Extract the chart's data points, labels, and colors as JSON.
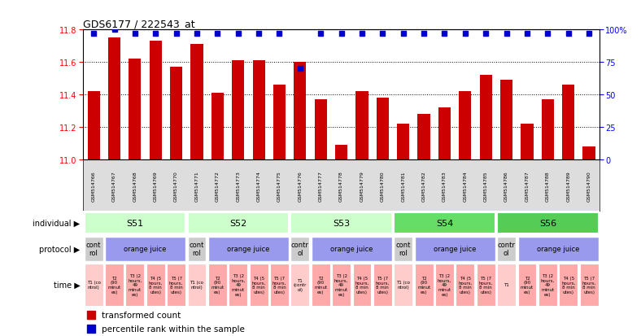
{
  "title": "GDS6177 / 222543_at",
  "samples": [
    "GSM514766",
    "GSM514767",
    "GSM514768",
    "GSM514769",
    "GSM514770",
    "GSM514771",
    "GSM514772",
    "GSM514773",
    "GSM514774",
    "GSM514775",
    "GSM514776",
    "GSM514777",
    "GSM514778",
    "GSM514779",
    "GSM514780",
    "GSM514781",
    "GSM514782",
    "GSM514783",
    "GSM514784",
    "GSM514785",
    "GSM514786",
    "GSM514787",
    "GSM514788",
    "GSM514789",
    "GSM514790"
  ],
  "bar_values": [
    11.42,
    11.75,
    11.62,
    11.73,
    11.57,
    11.71,
    11.41,
    11.61,
    11.61,
    11.46,
    11.6,
    11.37,
    11.09,
    11.42,
    11.38,
    11.22,
    11.28,
    11.32,
    11.42,
    11.52,
    11.49,
    11.22,
    11.37,
    11.46,
    11.08
  ],
  "percentile_values": [
    97,
    100,
    97,
    97,
    97,
    97,
    97,
    97,
    97,
    97,
    70,
    97,
    97,
    97,
    97,
    97,
    97,
    97,
    97,
    97,
    97,
    97,
    97,
    97,
    97
  ],
  "ylim_left": [
    11.0,
    11.8
  ],
  "ylim_right": [
    0,
    100
  ],
  "yticks_left": [
    11.0,
    11.2,
    11.4,
    11.6,
    11.8
  ],
  "yticks_right": [
    0,
    25,
    50,
    75,
    100
  ],
  "bar_color": "#cc0000",
  "dot_color": "#0000cc",
  "individual_groups": [
    {
      "label": "S51",
      "start": 0,
      "end": 4,
      "color": "#ccffcc"
    },
    {
      "label": "S52",
      "start": 5,
      "end": 9,
      "color": "#ccffcc"
    },
    {
      "label": "S53",
      "start": 10,
      "end": 14,
      "color": "#ccffcc"
    },
    {
      "label": "S54",
      "start": 15,
      "end": 19,
      "color": "#66dd66"
    },
    {
      "label": "S56",
      "start": 20,
      "end": 24,
      "color": "#55cc55"
    }
  ],
  "protocol_groups": [
    {
      "label": "cont\nrol",
      "start": 0,
      "end": 0,
      "color": "#cccccc"
    },
    {
      "label": "orange juice",
      "start": 1,
      "end": 4,
      "color": "#9999ee"
    },
    {
      "label": "cont\nrol",
      "start": 5,
      "end": 5,
      "color": "#cccccc"
    },
    {
      "label": "orange juice",
      "start": 6,
      "end": 9,
      "color": "#9999ee"
    },
    {
      "label": "contr\nol",
      "start": 10,
      "end": 10,
      "color": "#cccccc"
    },
    {
      "label": "orange juice",
      "start": 11,
      "end": 14,
      "color": "#9999ee"
    },
    {
      "label": "cont\nrol",
      "start": 15,
      "end": 15,
      "color": "#cccccc"
    },
    {
      "label": "orange juice",
      "start": 16,
      "end": 19,
      "color": "#9999ee"
    },
    {
      "label": "contr\nol",
      "start": 20,
      "end": 20,
      "color": "#cccccc"
    },
    {
      "label": "orange juice",
      "start": 21,
      "end": 24,
      "color": "#9999ee"
    }
  ],
  "time_cells": [
    {
      "label": "T1 (co\nntrol)",
      "color": "#ffcccc"
    },
    {
      "label": "T2\n(90\nminut\nes)",
      "color": "#ffaaaa"
    },
    {
      "label": "T3 (2\nhours,\n49\nminut\nes)",
      "color": "#ffaaaa"
    },
    {
      "label": "T4 (5\nhours,\n8 min\nutes)",
      "color": "#ffaaaa"
    },
    {
      "label": "T5 (7\nhours,\n8 min\nutes)",
      "color": "#ffaaaa"
    },
    {
      "label": "T1 (co\nntrol)",
      "color": "#ffcccc"
    },
    {
      "label": "T2\n(90\nminut\nes)",
      "color": "#ffaaaa"
    },
    {
      "label": "T3 (2\nhours,\n49\nminut\nes)",
      "color": "#ffaaaa"
    },
    {
      "label": "T4 (5\nhours,\n8 min\nutes)",
      "color": "#ffaaaa"
    },
    {
      "label": "T5 (7\nhours,\n8 min\nutes)",
      "color": "#ffaaaa"
    },
    {
      "label": "T1\n(contr\nol)",
      "color": "#ffcccc"
    },
    {
      "label": "T2\n(90\nminut\nes)",
      "color": "#ffaaaa"
    },
    {
      "label": "T3 (2\nhours,\n49\nminut\nes)",
      "color": "#ffaaaa"
    },
    {
      "label": "T4 (5\nhours,\n8 min\nutes)",
      "color": "#ffaaaa"
    },
    {
      "label": "T5 (7\nhours,\n8 min\nutes)",
      "color": "#ffaaaa"
    },
    {
      "label": "T1 (co\nntrol)",
      "color": "#ffcccc"
    },
    {
      "label": "T2\n(90\nminut\nes)",
      "color": "#ffaaaa"
    },
    {
      "label": "T3 (2\nhours,\n49\nminut\nes)",
      "color": "#ffaaaa"
    },
    {
      "label": "T4 (5\nhours,\n8 min\nutes)",
      "color": "#ffaaaa"
    },
    {
      "label": "T5 (7\nhours,\n8 min\nutes)",
      "color": "#ffaaaa"
    },
    {
      "label": "T1",
      "color": "#ffcccc"
    },
    {
      "label": "T2\n(90\nminut\nes)",
      "color": "#ffaaaa"
    },
    {
      "label": "T3 (2\nhours,\n49\nminut\nes)",
      "color": "#ffaaaa"
    },
    {
      "label": "T4 (5\nhours,\n8 min\nutes)",
      "color": "#ffaaaa"
    },
    {
      "label": "T5 (7\nhours,\n8 min\nutes)",
      "color": "#ffaaaa"
    }
  ],
  "xlabel_bg": "#dddddd",
  "legend_red_label": "transformed count",
  "legend_blue_label": "percentile rank within the sample",
  "legend_red_color": "#cc0000",
  "legend_blue_color": "#0000cc"
}
